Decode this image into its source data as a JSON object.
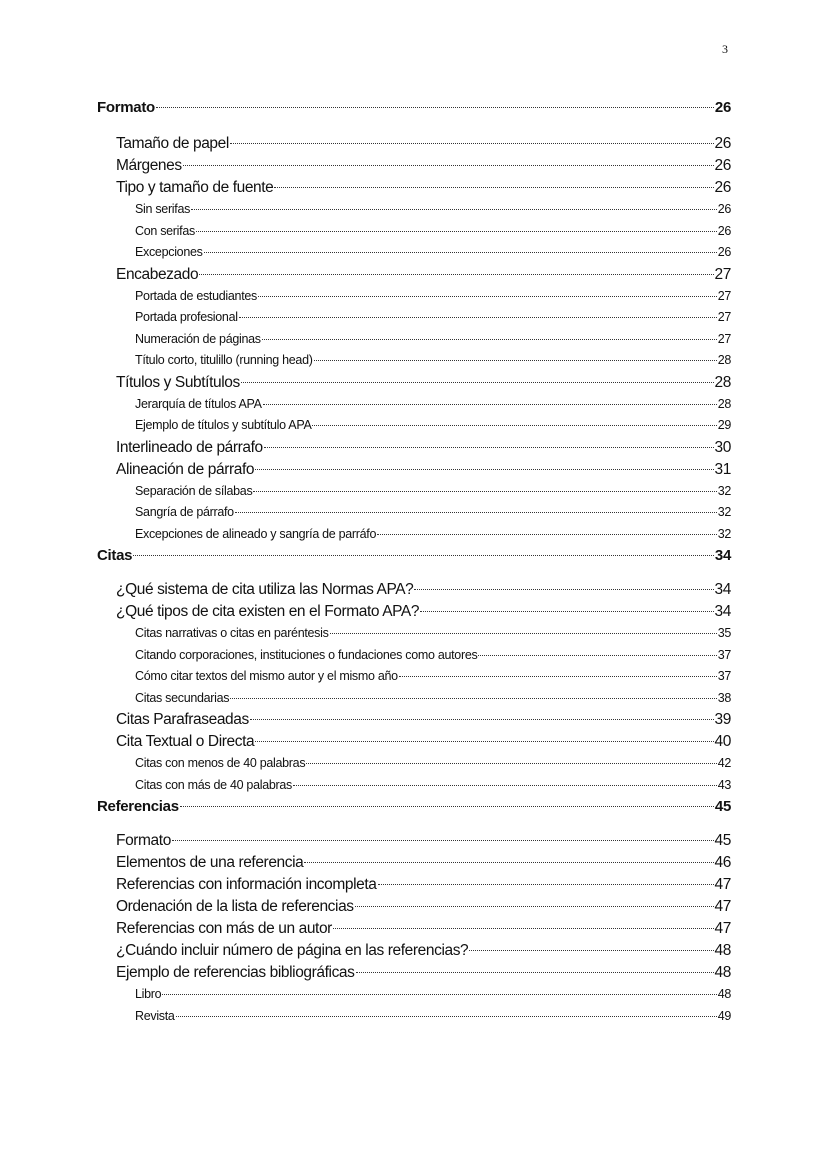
{
  "page_number": "3",
  "toc": [
    {
      "level": 1,
      "title": "Formato",
      "page": "26"
    },
    {
      "level": 2,
      "title": "Tamaño de papel",
      "page": "26"
    },
    {
      "level": 2,
      "title": "Márgenes",
      "page": "26"
    },
    {
      "level": 2,
      "title": "Tipo y tamaño de fuente",
      "page": "26"
    },
    {
      "level": 3,
      "title": "Sin serifas",
      "page": "26"
    },
    {
      "level": 3,
      "title": "Con serifas",
      "page": "26"
    },
    {
      "level": 3,
      "title": "Excepciones",
      "page": "26"
    },
    {
      "level": 2,
      "title": "Encabezado",
      "page": "27"
    },
    {
      "level": 3,
      "title": "Portada de estudiantes",
      "page": "27"
    },
    {
      "level": 3,
      "title": "Portada profesional",
      "page": "27"
    },
    {
      "level": 3,
      "title": "Numeración de páginas",
      "page": "27"
    },
    {
      "level": 3,
      "title": "Título corto, titulillo (running head)",
      "page": "28"
    },
    {
      "level": 2,
      "title": "Títulos y Subtítulos",
      "page": "28"
    },
    {
      "level": 3,
      "title": "Jerarquía de títulos APA",
      "page": "28"
    },
    {
      "level": 3,
      "title": "Ejemplo de títulos y subtítulo APA",
      "page": "29"
    },
    {
      "level": 2,
      "title": "Interlineado de párrafo",
      "page": "30"
    },
    {
      "level": 2,
      "title": "Alineación de párrafo",
      "page": "31"
    },
    {
      "level": 3,
      "title": "Separación de sílabas",
      "page": "32"
    },
    {
      "level": 3,
      "title": "Sangría de párrafo",
      "page": "32"
    },
    {
      "level": 3,
      "title": "Excepciones de alineado y sangría de parráfo",
      "page": "32"
    },
    {
      "level": 1,
      "title": "Citas",
      "page": "34"
    },
    {
      "level": 2,
      "title": "¿Qué sistema de cita utiliza las Normas APA?",
      "page": "34"
    },
    {
      "level": 2,
      "title": "¿Qué tipos de cita existen en el Formato APA?",
      "page": "34"
    },
    {
      "level": 3,
      "title": "Citas narrativas o citas en paréntesis",
      "page": "35"
    },
    {
      "level": 3,
      "title": "Citando corporaciones, instituciones o fundaciones como autores",
      "page": "37"
    },
    {
      "level": 3,
      "title": "Cómo citar textos del mismo autor y el mismo año",
      "page": "37"
    },
    {
      "level": 3,
      "title": "Citas secundarias",
      "page": "38"
    },
    {
      "level": 2,
      "title": "Citas Parafraseadas",
      "page": "39"
    },
    {
      "level": 2,
      "title": "Cita Textual o Directa",
      "page": "40"
    },
    {
      "level": 3,
      "title": "Citas con menos de 40 palabras",
      "page": "42"
    },
    {
      "level": 3,
      "title": "Citas con más de 40 palabras",
      "page": "43"
    },
    {
      "level": 1,
      "title": "Referencias",
      "page": "45"
    },
    {
      "level": 2,
      "title": "Formato",
      "page": "45"
    },
    {
      "level": 2,
      "title": "Elementos de una referencia",
      "page": "46"
    },
    {
      "level": 2,
      "title": "Referencias con información incompleta",
      "page": "47"
    },
    {
      "level": 2,
      "title": "Ordenación de la lista de referencias",
      "page": "47"
    },
    {
      "level": 2,
      "title": "Referencias con más de un autor",
      "page": "47"
    },
    {
      "level": 2,
      "title": "¿Cuándo incluir número de página en las referencias?",
      "page": "48"
    },
    {
      "level": 2,
      "title": "Ejemplo de referencias bibliográficas",
      "page": "48"
    },
    {
      "level": 3,
      "title": "Libro",
      "page": "48"
    },
    {
      "level": 3,
      "title": "Revista",
      "page": "49"
    }
  ]
}
